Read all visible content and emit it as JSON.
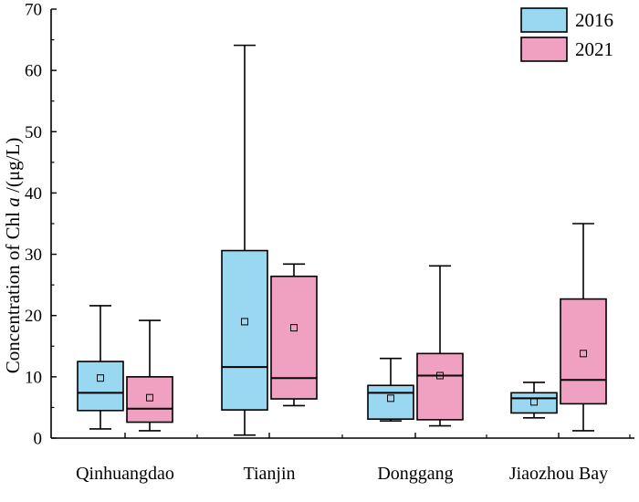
{
  "chart_data": {
    "type": "box",
    "title": "",
    "xlabel": "",
    "ylabel_parts": [
      "Concentration of Chl ",
      "a",
      " /(μg/L)"
    ],
    "ylim": [
      0,
      70
    ],
    "yticks": [
      0,
      10,
      20,
      30,
      40,
      50,
      60,
      70
    ],
    "grid": false,
    "legend_position": "top-right",
    "categories": [
      "Qinhuangdao",
      "Tianjin",
      "Donggang",
      "Jiaozhou Bay"
    ],
    "series": [
      {
        "name": "2016",
        "color": "#9ad8f2",
        "boxes": [
          {
            "category": "Qinhuangdao",
            "whisker_low": 1.5,
            "q1": 4.5,
            "median": 7.4,
            "q3": 12.5,
            "whisker_high": 21.6,
            "mean": 9.8
          },
          {
            "category": "Tianjin",
            "whisker_low": 0.5,
            "q1": 4.6,
            "median": 11.6,
            "q3": 30.6,
            "whisker_high": 64.1,
            "mean": 19.0
          },
          {
            "category": "Donggang",
            "whisker_low": 2.8,
            "q1": 3.1,
            "median": 7.4,
            "q3": 8.6,
            "whisker_high": 13.0,
            "mean": 6.5
          },
          {
            "category": "Jiaozhou Bay",
            "whisker_low": 3.3,
            "q1": 4.1,
            "median": 6.5,
            "q3": 7.4,
            "whisker_high": 9.1,
            "mean": 5.9
          }
        ]
      },
      {
        "name": "2021",
        "color": "#f0a0c0",
        "boxes": [
          {
            "category": "Qinhuangdao",
            "whisker_low": 1.2,
            "q1": 2.6,
            "median": 4.8,
            "q3": 10.0,
            "whisker_high": 19.2,
            "mean": 6.6
          },
          {
            "category": "Tianjin",
            "whisker_low": 5.3,
            "q1": 6.4,
            "median": 9.8,
            "q3": 26.4,
            "whisker_high": 28.4,
            "mean": 18.0
          },
          {
            "category": "Donggang",
            "whisker_low": 2.0,
            "q1": 3.0,
            "median": 10.2,
            "q3": 13.8,
            "whisker_high": 28.1,
            "mean": 10.2
          },
          {
            "category": "Jiaozhou Bay",
            "whisker_low": 1.2,
            "q1": 5.6,
            "median": 9.5,
            "q3": 22.7,
            "whisker_high": 35.0,
            "mean": 13.8
          }
        ]
      }
    ]
  }
}
